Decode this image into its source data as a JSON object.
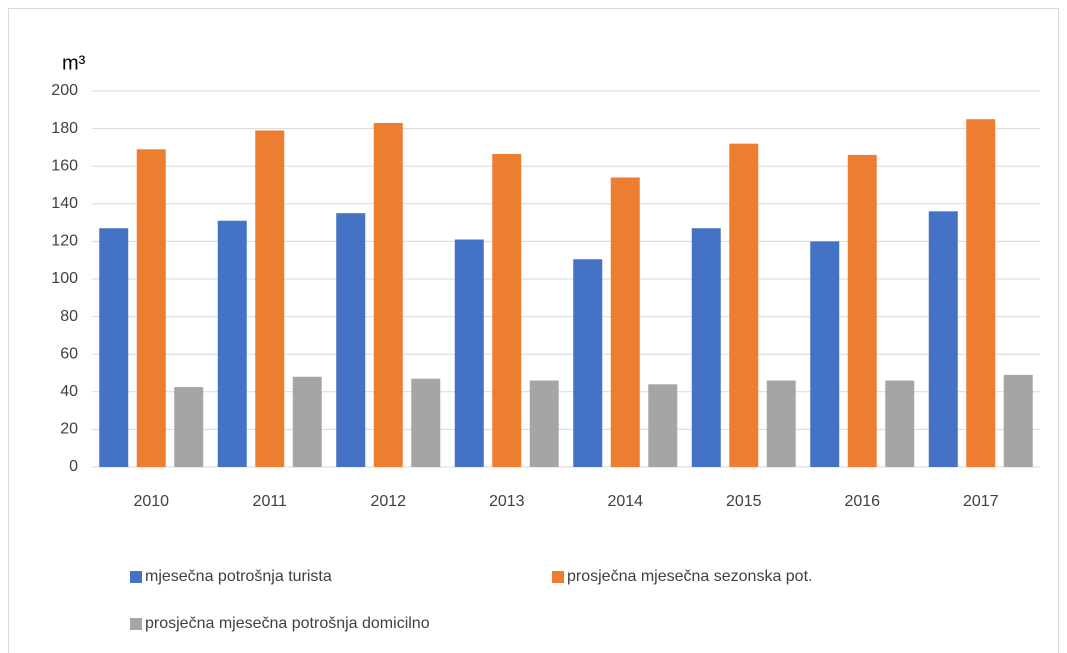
{
  "chart_data": {
    "type": "bar",
    "y_label": "m³",
    "categories": [
      "2010",
      "2011",
      "2012",
      "2013",
      "2014",
      "2015",
      "2016",
      "2017"
    ],
    "series": [
      {
        "name": "mjesečna potrošnja turista",
        "color": "#4472c4",
        "values": [
          127,
          131,
          135,
          121,
          110.5,
          127,
          120,
          136
        ]
      },
      {
        "name": "prosječna mjesečna sezonska pot.",
        "color": "#ed7d31",
        "values": [
          169,
          179,
          183,
          166.5,
          154,
          172,
          166,
          185
        ]
      },
      {
        "name": "prosječna mjesečna potrošnja domicilno",
        "color": "#a5a5a5",
        "values": [
          42.5,
          48,
          47,
          46,
          44,
          46,
          46,
          49
        ]
      }
    ],
    "ylim": [
      0,
      200
    ],
    "yticks": [
      0,
      20,
      40,
      60,
      80,
      100,
      120,
      140,
      160,
      180,
      200
    ],
    "grid": true,
    "legend": "bottom"
  }
}
